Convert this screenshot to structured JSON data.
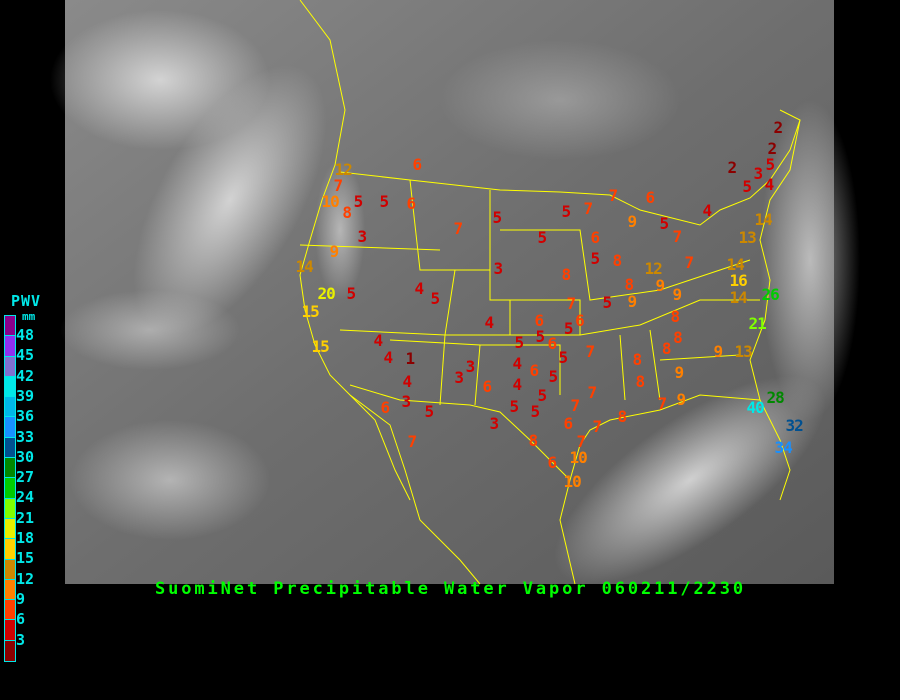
{
  "title": "SuomiNet Precipitable Water Vapor 060211/2230",
  "legend": {
    "title": "PWV",
    "unit": "mm",
    "colors": [
      "#8b008b",
      "#9030f0",
      "#8070d0",
      "#00e8e8",
      "#00b8e8",
      "#1890ff",
      "#005090",
      "#008800",
      "#00cc00",
      "#80ff00",
      "#e8f000",
      "#ffd000",
      "#cc8800",
      "#ff8000",
      "#ff4000",
      "#d00000",
      "#8b0000"
    ],
    "labels": [
      "48",
      "45",
      "42",
      "39",
      "36",
      "33",
      "30",
      "27",
      "24",
      "21",
      "18",
      "15",
      "12",
      "9",
      "6",
      "3"
    ]
  },
  "boundary_color": "#ffff00",
  "stations": [
    {
      "v": 6,
      "lon": -116.3,
      "lat": 49.6
    },
    {
      "v": 12,
      "lon": -123.2,
      "lat": 48.9
    },
    {
      "v": 7,
      "lon": -123.6,
      "lat": 48.3
    },
    {
      "v": 10,
      "lon": -124.2,
      "lat": 47.0
    },
    {
      "v": 5,
      "lon": -122.3,
      "lat": 47.2
    },
    {
      "v": 5,
      "lon": -119.7,
      "lat": 47.1
    },
    {
      "v": 6,
      "lon": -117.2,
      "lat": 47.4
    },
    {
      "v": 8,
      "lon": -123.0,
      "lat": 46.5
    },
    {
      "v": 5,
      "lon": -100.6,
      "lat": 46.8
    },
    {
      "v": 7,
      "lon": -106.0,
      "lat": 45.2
    },
    {
      "v": 3,
      "lon": -121.5,
      "lat": 44.5
    },
    {
      "v": 9,
      "lon": -123.3,
      "lat": 42.8
    },
    {
      "v": 3,
      "lon": -100.5,
      "lat": 44.3
    },
    {
      "v": 14,
      "lon": -124.1,
      "lat": 41.2
    },
    {
      "v": 20,
      "lon": -122.3,
      "lat": 38.5
    },
    {
      "v": 5,
      "lon": -120.0,
      "lat": 38.9
    },
    {
      "v": 4,
      "lon": -112.0,
      "lat": 40.7
    },
    {
      "v": 5,
      "lon": -111.0,
      "lat": 40.2
    },
    {
      "v": 15,
      "lon": -122.8,
      "lat": 37.4
    },
    {
      "v": 4,
      "lon": -104.8,
      "lat": 39.0
    },
    {
      "v": 15,
      "lon": -121.6,
      "lat": 35.6
    },
    {
      "v": 4,
      "lon": -117.4,
      "lat": 35.6
    },
    {
      "v": 4,
      "lon": -116.6,
      "lat": 34.6
    },
    {
      "v": 1,
      "lon": -114.7,
      "lat": 34.6
    },
    {
      "v": 3,
      "lon": -109.3,
      "lat": 34.9
    },
    {
      "v": 3,
      "lon": -110.0,
      "lat": 34.1
    },
    {
      "v": 4,
      "lon": -115.1,
      "lat": 33.5
    },
    {
      "v": 6,
      "lon": -106.5,
      "lat": 33.0
    },
    {
      "v": 3,
      "lon": -115.2,
      "lat": 32.4
    },
    {
      "v": 6,
      "lon": -117.2,
      "lat": 31.8
    },
    {
      "v": 5,
      "lon": -113.1,
      "lat": 31.5
    },
    {
      "v": 7,
      "lon": -114.7,
      "lat": 29.5
    },
    {
      "v": 3,
      "lon": -105.7,
      "lat": 30.5
    },
    {
      "v": 5,
      "lon": -93.4,
      "lat": 47.2
    },
    {
      "v": 7,
      "lon": -91.1,
      "lat": 47.6
    },
    {
      "v": 7,
      "lon": -88.5,
      "lat": 48.2
    },
    {
      "v": 6,
      "lon": -85.0,
      "lat": 48.0
    },
    {
      "v": 5,
      "lon": -96.6,
      "lat": 45.4
    },
    {
      "v": 6,
      "lon": -91.4,
      "lat": 45.3
    },
    {
      "v": 9,
      "lon": -87.2,
      "lat": 46.6
    },
    {
      "v": 5,
      "lon": -84.3,
      "lat": 46.2
    },
    {
      "v": 7,
      "lon": -83.2,
      "lat": 45.0
    },
    {
      "v": 4,
      "lon": -80.3,
      "lat": 47.4
    },
    {
      "v": 5,
      "lon": -91.2,
      "lat": 43.0
    },
    {
      "v": 8,
      "lon": -89.3,
      "lat": 42.9
    },
    {
      "v": 8,
      "lon": -93.5,
      "lat": 41.6
    },
    {
      "v": 12,
      "lon": -84.5,
      "lat": 42.0
    },
    {
      "v": 7,
      "lon": -81.0,
      "lat": 42.6
    },
    {
      "v": 9,
      "lon": -83.9,
      "lat": 40.8
    },
    {
      "v": 8,
      "lon": -86.9,
      "lat": 40.5
    },
    {
      "v": 9,
      "lon": -86.6,
      "lat": 39.3
    },
    {
      "v": 9,
      "lon": -82.6,
      "lat": 39.8
    },
    {
      "v": 5,
      "lon": -88.4,
      "lat": 38.9
    },
    {
      "v": 7,
      "lon": -93.0,
      "lat": 38.5
    },
    {
      "v": 6,
      "lon": -92.5,
      "lat": 37.4
    },
    {
      "v": 6,
      "lon": -95.8,
      "lat": 37.0
    },
    {
      "v": 5,
      "lon": -95.7,
      "lat": 35.8
    },
    {
      "v": 5,
      "lon": -92.4,
      "lat": 36.4
    },
    {
      "v": 8,
      "lon": -82.8,
      "lat": 37.6
    },
    {
      "v": 8,
      "lon": -82.6,
      "lat": 35.6
    },
    {
      "v": 8,
      "lon": -83.5,
      "lat": 34.5
    },
    {
      "v": 5,
      "lon": -97.6,
      "lat": 35.3
    },
    {
      "v": 6,
      "lon": -94.6,
      "lat": 35.2
    },
    {
      "v": 7,
      "lon": -90.3,
      "lat": 34.4
    },
    {
      "v": 5,
      "lon": -95.0,
      "lat": 33.8
    },
    {
      "v": 4,
      "lon": -97.8,
      "lat": 33.4
    },
    {
      "v": 6,
      "lon": -96.1,
      "lat": 32.7
    },
    {
      "v": 5,
      "lon": -94.3,
      "lat": 32.1
    },
    {
      "v": 4,
      "lon": -97.8,
      "lat": 31.6
    },
    {
      "v": 8,
      "lon": -87.8,
      "lat": 33.0
    },
    {
      "v": 8,
      "lon": -87.4,
      "lat": 30.8
    },
    {
      "v": 9,
      "lon": -83.3,
      "lat": 31.6
    },
    {
      "v": 5,
      "lon": -95.2,
      "lat": 30.2
    },
    {
      "v": 5,
      "lon": -98.0,
      "lat": 29.7
    },
    {
      "v": 5,
      "lon": -96.1,
      "lat": 29.3
    },
    {
      "v": 7,
      "lon": -89.9,
      "lat": 30.9
    },
    {
      "v": 7,
      "lon": -91.6,
      "lat": 29.6
    },
    {
      "v": 7,
      "lon": -85.1,
      "lat": 29.7
    },
    {
      "v": 9,
      "lon": -83.1,
      "lat": 30.0
    },
    {
      "v": 8,
      "lon": -88.5,
      "lat": 28.5
    },
    {
      "v": 6,
      "lon": -92.8,
      "lat": 28.2
    },
    {
      "v": 7,
      "lon": -89.2,
      "lat": 27.9
    },
    {
      "v": 7,
      "lon": -90.6,
      "lat": 26.5
    },
    {
      "v": 8,
      "lon": -98.3,
      "lat": 26.6
    },
    {
      "v": 6,
      "lon": -96.6,
      "lat": 24.6
    },
    {
      "v": 10,
      "lon": -94.1,
      "lat": 25.1
    },
    {
      "v": 10,
      "lon": -94.7,
      "lat": 22.7
    },
    {
      "v": 14,
      "lon": -74.9,
      "lat": 44.5
    },
    {
      "v": 13,
      "lon": -76.3,
      "lat": 42.8
    },
    {
      "v": 14,
      "lon": -77.5,
      "lat": 40.0
    },
    {
      "v": 16,
      "lon": -77.2,
      "lat": 39.0
    },
    {
      "v": 14,
      "lon": -77.2,
      "lat": 37.0
    },
    {
      "v": 26,
      "lon": -74.2,
      "lat": 37.3
    },
    {
      "v": 21,
      "lon": -75.4,
      "lat": 34.4
    },
    {
      "v": 9,
      "lon": -79.5,
      "lat": 31.7
    },
    {
      "v": 13,
      "lon": -77.1,
      "lat": 31.7
    },
    {
      "v": 28,
      "lon": -73.6,
      "lat": 27.1
    },
    {
      "v": 40,
      "lon": -75.5,
      "lat": 26.1
    },
    {
      "v": 32,
      "lon": -71.8,
      "lat": 24.4
    },
    {
      "v": 34,
      "lon": -72.8,
      "lat": 22.3
    },
    {
      "v": 2,
      "lon": -72.4,
      "lat": 54.1
    },
    {
      "v": 2,
      "lon": -73.0,
      "lat": 51.9
    },
    {
      "v": 5,
      "lon": -73.2,
      "lat": 50.4
    },
    {
      "v": 2,
      "lon": -76.8,
      "lat": 50.0
    },
    {
      "v": 3,
      "lon": -74.4,
      "lat": 49.5
    },
    {
      "v": 5,
      "lon": -75.4,
      "lat": 48.2
    },
    {
      "v": 4,
      "lon": -73.4,
      "lat": 48.4
    }
  ]
}
